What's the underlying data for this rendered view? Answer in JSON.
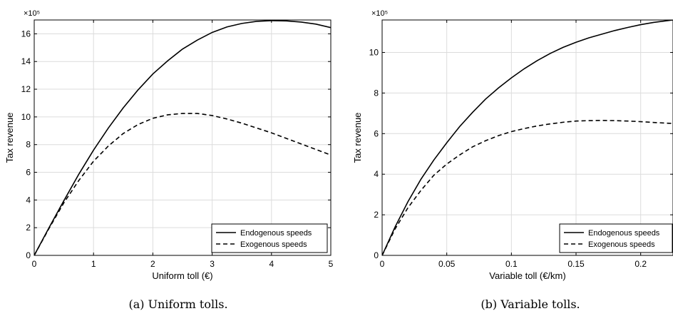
{
  "chart_data": [
    {
      "type": "line",
      "panel_id": "a",
      "caption": "(a) Uniform tolls.",
      "xlabel": "Uniform toll (€)",
      "ylabel": "Tax revenue",
      "y_exponent_label": "×10⁵",
      "xlim": [
        0,
        5
      ],
      "ylim": [
        0,
        17
      ],
      "xticks": [
        0,
        1,
        2,
        3,
        4,
        5
      ],
      "xtick_labels": [
        "0",
        "1",
        "2",
        "3",
        "4",
        "5"
      ],
      "yticks": [
        0,
        2,
        4,
        6,
        8,
        10,
        12,
        14,
        16
      ],
      "ytick_labels": [
        "0",
        "2",
        "4",
        "6",
        "8",
        "10",
        "12",
        "14",
        "16"
      ],
      "grid": true,
      "legend_position": "bottom-right",
      "series": [
        {
          "name": "Endogenous speeds",
          "style": "solid",
          "x": [
            0,
            0.25,
            0.5,
            0.75,
            1,
            1.25,
            1.5,
            1.75,
            2,
            2.25,
            2.5,
            2.75,
            3,
            3.25,
            3.5,
            3.75,
            4,
            4.25,
            4.5,
            4.75,
            5
          ],
          "values": [
            0,
            2.0,
            3.95,
            5.85,
            7.6,
            9.2,
            10.65,
            11.95,
            13.1,
            14.05,
            14.9,
            15.55,
            16.1,
            16.5,
            16.75,
            16.9,
            16.95,
            16.93,
            16.85,
            16.7,
            16.45
          ]
        },
        {
          "name": "Exogenous speeds",
          "style": "dashed",
          "x": [
            0,
            0.25,
            0.5,
            0.75,
            1,
            1.25,
            1.5,
            1.75,
            2,
            2.25,
            2.5,
            2.75,
            3,
            3.25,
            3.5,
            3.75,
            4,
            4.25,
            4.5,
            4.75,
            5
          ],
          "values": [
            0,
            1.95,
            3.8,
            5.4,
            6.8,
            7.9,
            8.8,
            9.45,
            9.9,
            10.15,
            10.25,
            10.25,
            10.1,
            9.85,
            9.55,
            9.2,
            8.85,
            8.45,
            8.05,
            7.65,
            7.25
          ]
        }
      ]
    },
    {
      "type": "line",
      "panel_id": "b",
      "caption": "(b) Variable tolls.",
      "xlabel": "Variable toll (€/km)",
      "ylabel": "Tax revenue",
      "y_exponent_label": "×10⁵",
      "xlim": [
        0,
        0.225
      ],
      "ylim": [
        0,
        11.6
      ],
      "xticks": [
        0,
        0.05,
        0.1,
        0.15,
        0.2
      ],
      "xtick_labels": [
        "0",
        "0.05",
        "0.1",
        "0.15",
        "0.2"
      ],
      "yticks": [
        0,
        2,
        4,
        6,
        8,
        10
      ],
      "ytick_labels": [
        "0",
        "2",
        "4",
        "6",
        "8",
        "10"
      ],
      "grid": true,
      "legend_position": "bottom-right",
      "series": [
        {
          "name": "Endogenous speeds",
          "style": "solid",
          "x": [
            0,
            0.01,
            0.02,
            0.03,
            0.04,
            0.05,
            0.06,
            0.07,
            0.08,
            0.09,
            0.1,
            0.11,
            0.12,
            0.13,
            0.14,
            0.15,
            0.16,
            0.17,
            0.18,
            0.19,
            0.2,
            0.21,
            0.225
          ],
          "values": [
            0,
            1.4,
            2.65,
            3.75,
            4.7,
            5.55,
            6.35,
            7.05,
            7.7,
            8.25,
            8.75,
            9.2,
            9.6,
            9.95,
            10.25,
            10.5,
            10.72,
            10.9,
            11.08,
            11.23,
            11.37,
            11.48,
            11.6
          ]
        },
        {
          "name": "Exogenous speeds",
          "style": "dashed",
          "x": [
            0,
            0.01,
            0.02,
            0.03,
            0.04,
            0.05,
            0.06,
            0.07,
            0.08,
            0.09,
            0.1,
            0.11,
            0.12,
            0.13,
            0.14,
            0.15,
            0.16,
            0.17,
            0.18,
            0.19,
            0.2,
            0.21,
            0.225
          ],
          "values": [
            0,
            1.3,
            2.35,
            3.2,
            3.95,
            4.5,
            4.95,
            5.35,
            5.65,
            5.9,
            6.1,
            6.25,
            6.38,
            6.48,
            6.56,
            6.62,
            6.64,
            6.65,
            6.64,
            6.62,
            6.59,
            6.55,
            6.5
          ]
        }
      ]
    }
  ]
}
